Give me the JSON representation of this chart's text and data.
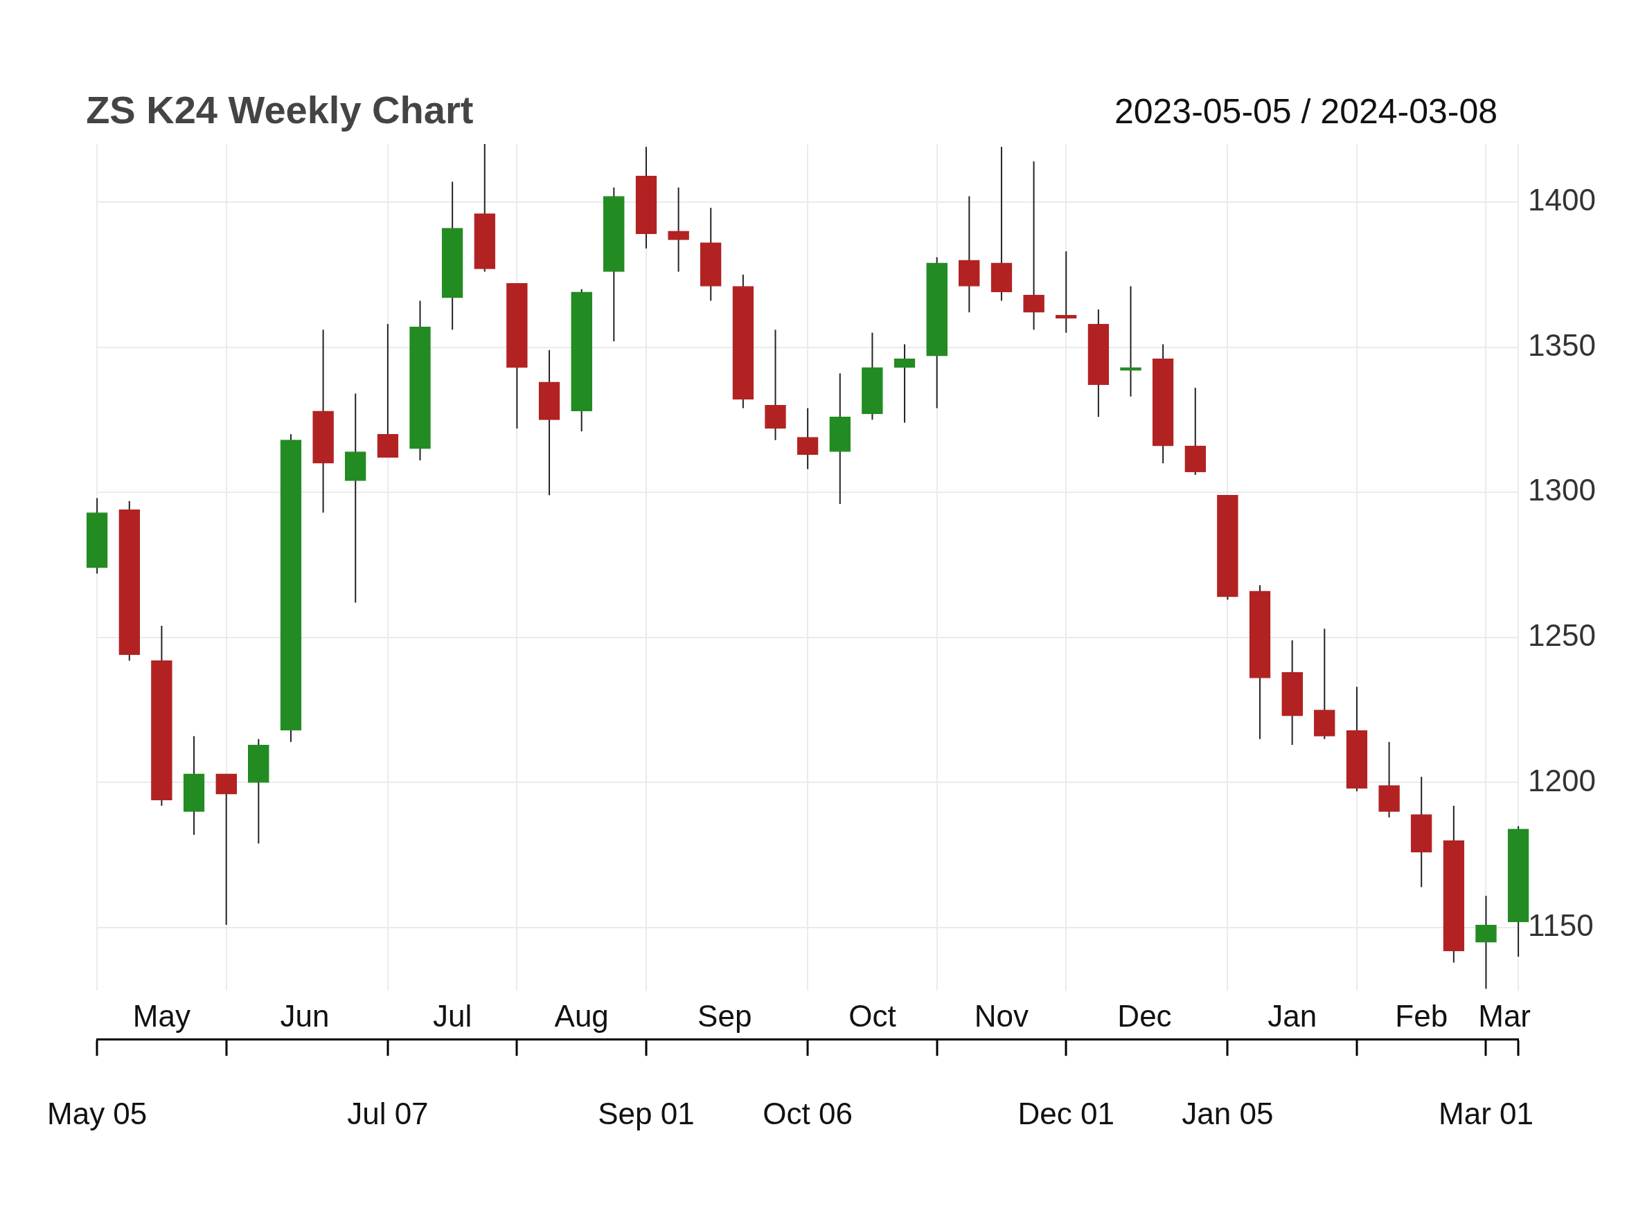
{
  "chart_data": {
    "type": "candlestick",
    "title": "ZS K24 Weekly Chart",
    "subtitle": "2023-05-05 / 2024-03-08",
    "x": [
      "2023-05-05",
      "2023-05-12",
      "2023-05-19",
      "2023-05-26",
      "2023-06-02",
      "2023-06-09",
      "2023-06-16",
      "2023-06-23",
      "2023-06-30",
      "2023-07-07",
      "2023-07-14",
      "2023-07-21",
      "2023-07-28",
      "2023-08-04",
      "2023-08-11",
      "2023-08-18",
      "2023-08-25",
      "2023-09-01",
      "2023-09-08",
      "2023-09-15",
      "2023-09-22",
      "2023-09-29",
      "2023-10-06",
      "2023-10-13",
      "2023-10-20",
      "2023-10-27",
      "2023-11-03",
      "2023-11-10",
      "2023-11-17",
      "2023-11-24",
      "2023-12-01",
      "2023-12-08",
      "2023-12-15",
      "2023-12-22",
      "2023-12-29",
      "2024-01-05",
      "2024-01-12",
      "2024-01-19",
      "2024-01-26",
      "2024-02-02",
      "2024-02-09",
      "2024-02-16",
      "2024-02-23",
      "2024-03-01",
      "2024-03-08"
    ],
    "ohlc": [
      [
        1274,
        1298,
        1272,
        1293
      ],
      [
        1294,
        1297,
        1242,
        1244
      ],
      [
        1242,
        1254,
        1192,
        1194
      ],
      [
        1190,
        1216,
        1182,
        1203
      ],
      [
        1203,
        1203,
        1151,
        1196
      ],
      [
        1200,
        1215,
        1179,
        1213
      ],
      [
        1218,
        1320,
        1214,
        1318
      ],
      [
        1328,
        1356,
        1293,
        1310
      ],
      [
        1304,
        1334,
        1262,
        1314
      ],
      [
        1320,
        1358,
        1312,
        1312
      ],
      [
        1315,
        1366,
        1311,
        1357
      ],
      [
        1367,
        1407,
        1356,
        1391
      ],
      [
        1396,
        1420,
        1376,
        1377
      ],
      [
        1372,
        1372,
        1322,
        1343
      ],
      [
        1338,
        1349,
        1299,
        1325
      ],
      [
        1328,
        1370,
        1321,
        1369
      ],
      [
        1376,
        1405,
        1352,
        1402
      ],
      [
        1409,
        1419,
        1384,
        1389
      ],
      [
        1390,
        1405,
        1376,
        1387
      ],
      [
        1386,
        1398,
        1366,
        1371
      ],
      [
        1371,
        1375,
        1329,
        1332
      ],
      [
        1330,
        1356,
        1318,
        1322
      ],
      [
        1319,
        1329,
        1308,
        1313
      ],
      [
        1314,
        1341,
        1296,
        1326
      ],
      [
        1327,
        1355,
        1325,
        1343
      ],
      [
        1343,
        1351,
        1324,
        1346
      ],
      [
        1347,
        1381,
        1329,
        1379
      ],
      [
        1380,
        1402,
        1362,
        1371
      ],
      [
        1379,
        1419,
        1366,
        1369
      ],
      [
        1368,
        1414,
        1356,
        1362
      ],
      [
        1361,
        1383,
        1355,
        1360
      ],
      [
        1358,
        1363,
        1326,
        1337
      ],
      [
        1342,
        1371,
        1333,
        1343
      ],
      [
        1346,
        1351,
        1310,
        1316
      ],
      [
        1316,
        1336,
        1306,
        1307
      ],
      [
        1299,
        1299,
        1263,
        1264
      ],
      [
        1266,
        1268,
        1215,
        1236
      ],
      [
        1238,
        1249,
        1213,
        1223
      ],
      [
        1225,
        1253,
        1215,
        1216
      ],
      [
        1218,
        1233,
        1197,
        1198
      ],
      [
        1199,
        1214,
        1188,
        1190
      ],
      [
        1189,
        1202,
        1164,
        1176
      ],
      [
        1180,
        1192,
        1138,
        1142
      ],
      [
        1145,
        1161,
        1129,
        1151
      ],
      [
        1152,
        1185,
        1140,
        1184
      ]
    ],
    "colors": [
      "#228b22",
      "#b22222",
      "#b22222",
      "#228b22",
      "#b22222",
      "#228b22",
      "#228b22",
      "#b22222",
      "#228b22",
      "#b22222",
      "#228b22",
      "#228b22",
      "#b22222",
      "#b22222",
      "#b22222",
      "#228b22",
      "#228b22",
      "#b22222",
      "#b22222",
      "#b22222",
      "#b22222",
      "#b22222",
      "#b22222",
      "#228b22",
      "#228b22",
      "#228b22",
      "#228b22",
      "#b22222",
      "#b22222",
      "#b22222",
      "#b22222",
      "#b22222",
      "#228b22",
      "#b22222",
      "#b22222",
      "#b22222",
      "#b22222",
      "#b22222",
      "#b22222",
      "#b22222",
      "#b22222",
      "#b22222",
      "#b22222",
      "#228b22",
      "#228b22"
    ],
    "xlim": [
      "2023-05-05",
      "2024-03-08"
    ],
    "xticks": [
      {
        "value": "2023-05-05",
        "label": "May 05"
      },
      {
        "value": "2023-06-02",
        "label": null
      },
      {
        "value": "2023-07-07",
        "label": "Jul 07"
      },
      {
        "value": "2023-08-04",
        "label": null
      },
      {
        "value": "2023-09-01",
        "label": "Sep 01"
      },
      {
        "value": "2023-10-06",
        "label": "Oct 06"
      },
      {
        "value": "2023-11-03",
        "label": null
      },
      {
        "value": "2023-12-01",
        "label": "Dec 01"
      },
      {
        "value": "2024-01-05",
        "label": "Jan 05"
      },
      {
        "value": "2024-02-02",
        "label": null
      },
      {
        "value": "2024-03-01",
        "label": "Mar 01"
      },
      {
        "value": "2024-03-08",
        "label": null
      }
    ],
    "x2lim": [
      "2023-05-05",
      "2024-03-08"
    ],
    "x2ticks": [
      {
        "value": "2023-05-19",
        "label": "May"
      },
      {
        "value": "2023-06-19",
        "label": "Jun"
      },
      {
        "value": "2023-07-21",
        "label": "Jul"
      },
      {
        "value": "2023-08-18",
        "label": "Aug"
      },
      {
        "value": "2023-09-18",
        "label": "Sep"
      },
      {
        "value": "2023-10-20",
        "label": "Oct"
      },
      {
        "value": "2023-11-17",
        "label": "Nov"
      },
      {
        "value": "2023-12-18",
        "label": "Dec"
      },
      {
        "value": "2024-01-19",
        "label": "Jan"
      },
      {
        "value": "2024-02-16",
        "label": "Feb"
      },
      {
        "value": "2024-03-05",
        "label": "Mar"
      }
    ],
    "ylim": [
      1128,
      1420
    ],
    "yticks": [
      1150,
      1200,
      1250,
      1300,
      1350,
      1400
    ],
    "grid": true
  }
}
